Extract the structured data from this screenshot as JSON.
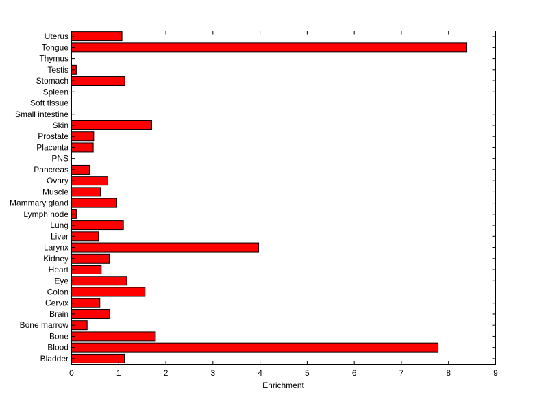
{
  "chart_data": {
    "type": "bar",
    "orientation": "horizontal",
    "categories": [
      "Bladder",
      "Blood",
      "Bone",
      "Bone marrow",
      "Brain",
      "Cervix",
      "Colon",
      "Eye",
      "Heart",
      "Kidney",
      "Larynx",
      "Liver",
      "Lung",
      "Lymph node",
      "Mammary gland",
      "Muscle",
      "Ovary",
      "Pancreas",
      "PNS",
      "Placenta",
      "Prostate",
      "Skin",
      "Small intestine",
      "Soft tissue",
      "Spleen",
      "Stomach",
      "Testis",
      "Thymus",
      "Tongue",
      "Uterus"
    ],
    "values": [
      1.12,
      7.78,
      1.78,
      0.33,
      0.81,
      0.6,
      1.56,
      1.17,
      0.63,
      0.8,
      3.97,
      0.57,
      1.1,
      0.1,
      0.96,
      0.61,
      0.77,
      0.38,
      0,
      0.46,
      0.47,
      1.7,
      0,
      0,
      0,
      1.13,
      0.1,
      0,
      8.39,
      1.07
    ],
    "xlabel": "Enrichment",
    "ylabel": "",
    "xlim": [
      0,
      9
    ],
    "xticks": [
      0,
      1,
      2,
      3,
      4,
      5,
      6,
      7,
      8,
      9
    ],
    "grid": false,
    "bar_color": "#ff0000",
    "bar_edge_color": "#000000"
  }
}
